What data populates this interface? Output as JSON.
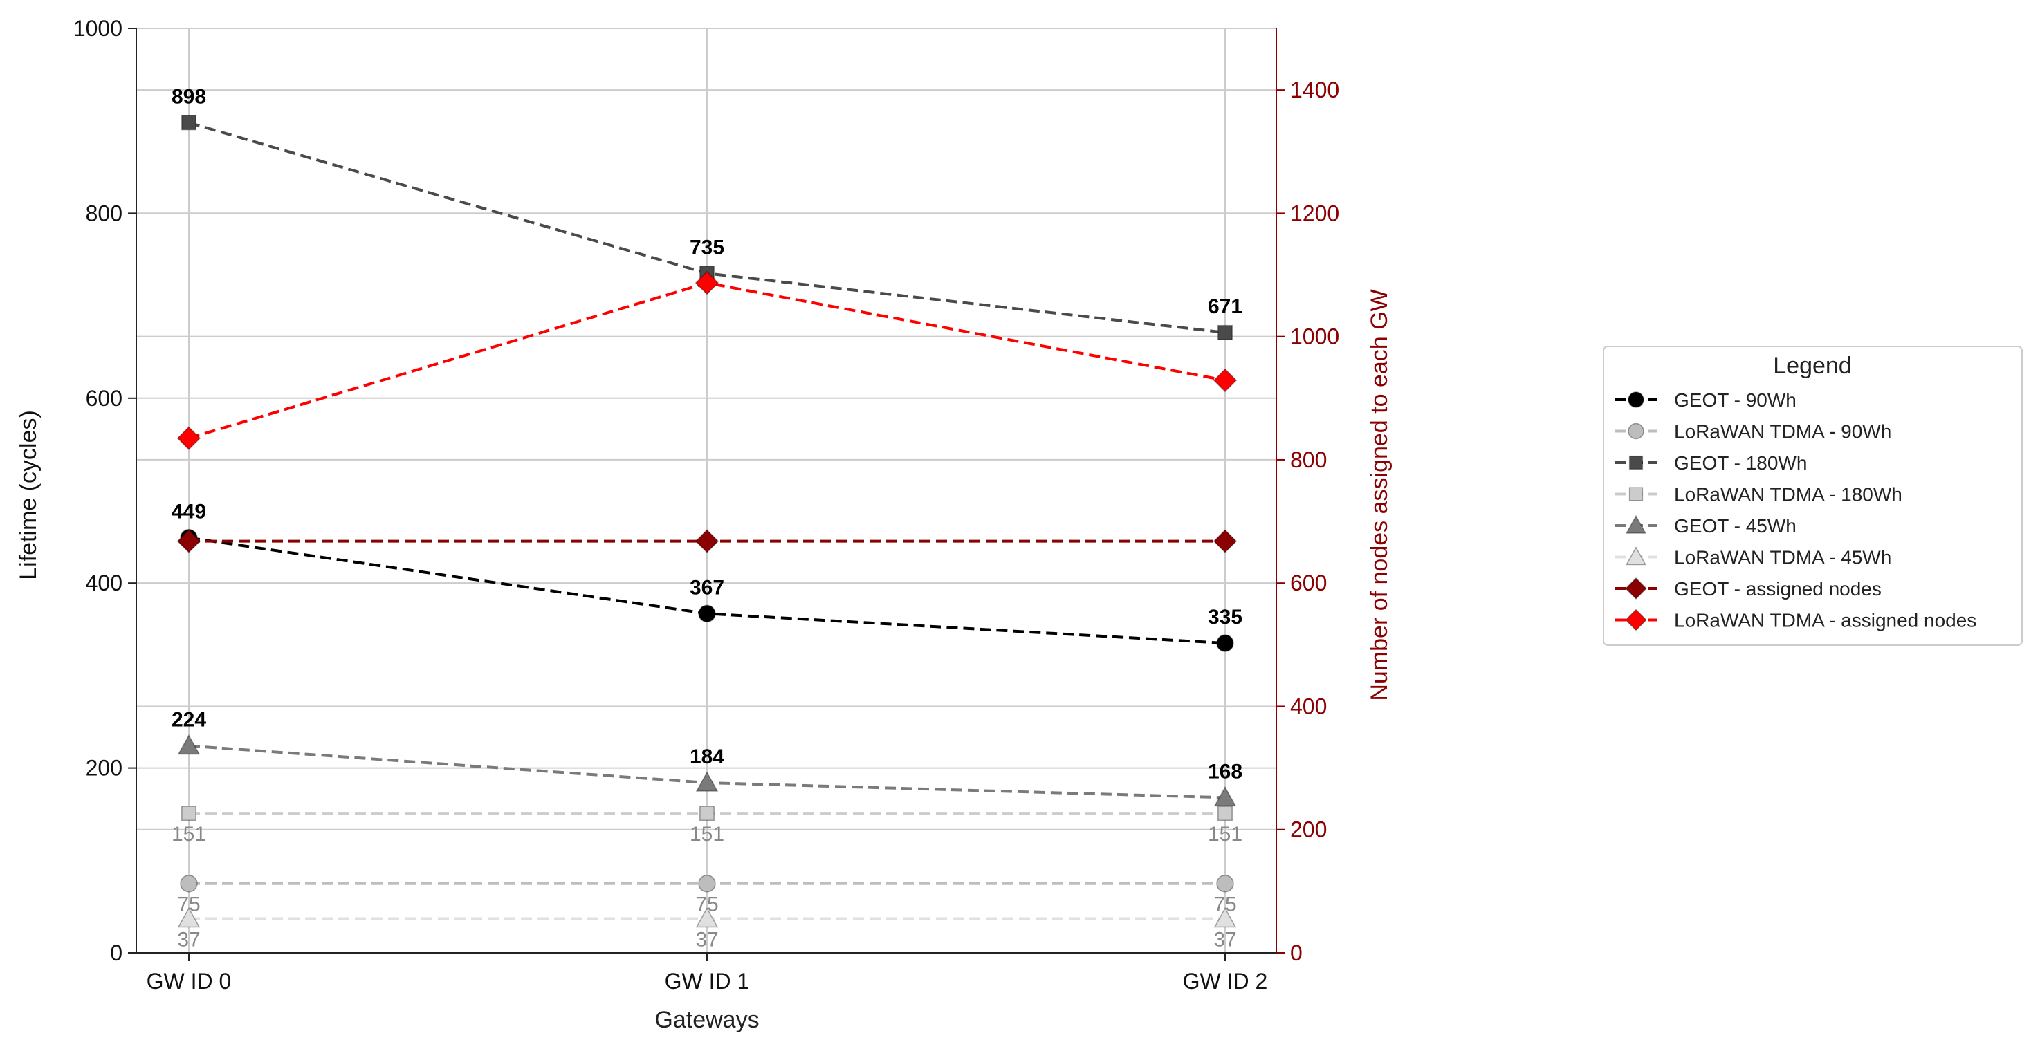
{
  "chart_data": {
    "type": "line",
    "xlabel": "Gateways",
    "ylabel": "Lifetime (cycles)",
    "y2label": "Number of nodes assigned to each GW",
    "categories": [
      "GW ID 0",
      "GW ID 1",
      "GW ID 2"
    ],
    "ylim": [
      0,
      1000
    ],
    "y2lim": [
      0,
      1500
    ],
    "yticks": [
      0,
      200,
      400,
      600,
      800,
      1000
    ],
    "y2ticks": [
      0,
      200,
      400,
      600,
      800,
      1000,
      1200,
      1400
    ],
    "grid": true,
    "legend": {
      "title": "Legend",
      "placement": "outside right"
    },
    "colors": {
      "right_axis": "#8b0000"
    },
    "series": [
      {
        "name": "GEOT - 90Wh",
        "axis": "left",
        "values": [
          449,
          367,
          335
        ],
        "color": "#000000",
        "marker": "circle",
        "labels": [
          "449",
          "367",
          "335"
        ],
        "label_style": "bold-above"
      },
      {
        "name": "LoRaWAN TDMA - 90Wh",
        "axis": "left",
        "values": [
          75,
          75,
          75
        ],
        "color": "#bdbdbd",
        "marker": "circle",
        "labels": [
          "75",
          "75",
          "75"
        ],
        "label_style": "grey-below"
      },
      {
        "name": "GEOT - 180Wh",
        "axis": "left",
        "values": [
          898,
          735,
          671
        ],
        "color": "#4a4a4a",
        "marker": "square",
        "labels": [
          "898",
          "735",
          "671"
        ],
        "label_style": "bold-above"
      },
      {
        "name": "LoRaWAN TDMA - 180Wh",
        "axis": "left",
        "values": [
          151,
          151,
          151
        ],
        "color": "#cccccc",
        "marker": "square",
        "labels": [
          "151",
          "151",
          "151"
        ],
        "label_style": "grey-below"
      },
      {
        "name": "GEOT - 45Wh",
        "axis": "left",
        "values": [
          224,
          184,
          168
        ],
        "color": "#7a7a7a",
        "marker": "triangle",
        "labels": [
          "224",
          "184",
          "168"
        ],
        "label_style": "bold-above"
      },
      {
        "name": "LoRaWAN TDMA - 45Wh",
        "axis": "left",
        "values": [
          37,
          37,
          37
        ],
        "color": "#e0e0e0",
        "marker": "triangle",
        "labels": [
          "37",
          "37",
          "37"
        ],
        "label_style": "grey-below"
      },
      {
        "name": "GEOT - assigned nodes",
        "axis": "right",
        "values": [
          668,
          668,
          668
        ],
        "color": "#8b0000",
        "marker": "diamond"
      },
      {
        "name": "LoRaWAN TDMA - assigned nodes",
        "axis": "right",
        "values": [
          835,
          1087,
          929
        ],
        "color": "#ff0000",
        "marker": "diamond"
      }
    ]
  }
}
